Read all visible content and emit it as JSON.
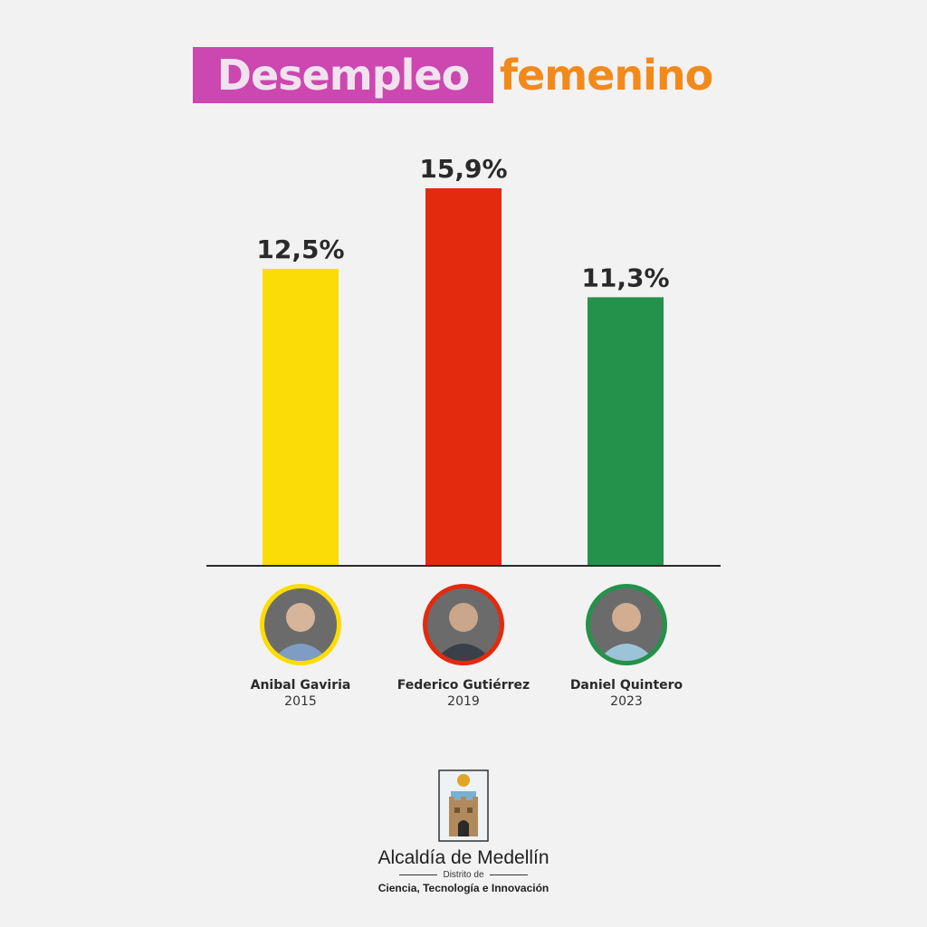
{
  "title": {
    "part1": "Desempleo",
    "part2": "femenino"
  },
  "chart_data": {
    "type": "bar",
    "categories": [
      "Anibal Gaviria 2015",
      "Federico Gutiérrez 2019",
      "Daniel Quintero 2023"
    ],
    "values": [
      12.5,
      15.9,
      11.3
    ],
    "value_labels": [
      "12,5%",
      "15,9%",
      "11,3%"
    ],
    "colors": [
      "#fbdc04",
      "#e32a0e",
      "#24924a"
    ],
    "ylim": [
      0,
      16
    ]
  },
  "candidates": [
    {
      "name": "Anibal Gaviria",
      "year": "2015",
      "ring_color": "#fbdc04"
    },
    {
      "name": "Federico Gutiérrez",
      "year": "2019",
      "ring_color": "#e32a0e"
    },
    {
      "name": "Daniel Quintero",
      "year": "2023",
      "ring_color": "#24924a"
    }
  ],
  "logo": {
    "name": "Alcaldía de Medellín",
    "sub": "Distrito de",
    "tagline": "Ciencia, Tecnología e Innovación"
  }
}
